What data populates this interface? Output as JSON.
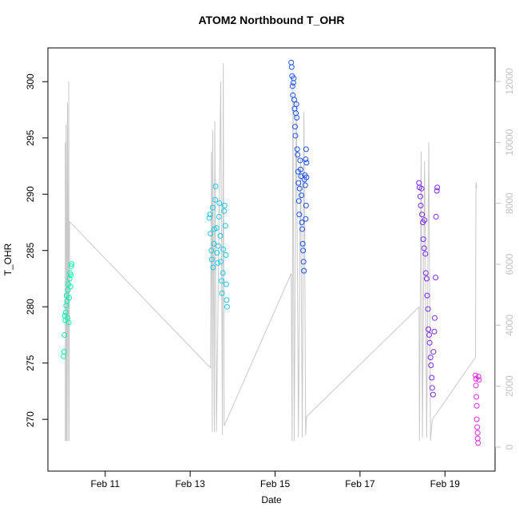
{
  "chart_data": {
    "type": "scatter",
    "title": "ATOM2 Northbound T_OHR",
    "x_label": "Date",
    "y_label": "T_OHR",
    "xlim": [
      9.65,
      20.18
    ],
    "xticks": [
      {
        "value": 11,
        "label": "Feb 11"
      },
      {
        "value": 13,
        "label": "Feb 13"
      },
      {
        "value": 15,
        "label": "Feb 15"
      },
      {
        "value": 17,
        "label": "Feb 17"
      },
      {
        "value": 19,
        "label": "Feb 19"
      }
    ],
    "ylim": [
      265.4,
      303.0
    ],
    "yticks": [
      270,
      275,
      280,
      285,
      290,
      295,
      300
    ],
    "y2lim": [
      -786,
      13100
    ],
    "y2ticks": [
      0,
      2000,
      4000,
      6000,
      8000,
      10000,
      12000
    ],
    "y2_color": "#c0c0c0",
    "series": [
      {
        "type": "line",
        "axis": "y2",
        "color": "#c8c8c8",
        "x": [
          10.06,
          10.06,
          10.07,
          10.08,
          10.09,
          10.11,
          10.12,
          10.14,
          10.15,
          10.16,
          13.48,
          13.5,
          13.52,
          13.53,
          13.57,
          13.58,
          13.62,
          13.72,
          13.76,
          13.78,
          13.8,
          15.38,
          15.4,
          15.42,
          15.45,
          15.5,
          15.55,
          15.6,
          15.64,
          15.68,
          15.72,
          15.74,
          18.39,
          18.4,
          18.44,
          18.47,
          18.52,
          18.57,
          18.62,
          18.66,
          18.7,
          19.72,
          19.73,
          19.75
        ],
        "values": [
          200,
          10000,
          200,
          10600,
          200,
          11300,
          200,
          12000,
          200,
          7400,
          2600,
          9700,
          500,
          10400,
          500,
          10700,
          500,
          12000,
          400,
          12600,
          700,
          5700,
          200,
          12000,
          200,
          11500,
          300,
          9500,
          300,
          11000,
          400,
          1000,
          4600,
          200,
          9700,
          300,
          9400,
          300,
          10000,
          200,
          900,
          2950,
          8700,
          8500
        ]
      },
      {
        "color": "#00f5b0",
        "x": [
          10.02,
          10.03,
          10.04,
          10.05,
          10.06,
          10.07,
          10.08,
          10.09,
          10.1,
          10.11,
          10.12,
          10.13,
          10.14,
          10.15,
          10.16,
          10.17,
          10.18,
          10.19,
          10.2,
          10.21
        ],
        "values": [
          275.6,
          276.0,
          277.5,
          279.2,
          278.8,
          279.5,
          280.1,
          281.0,
          280.5,
          279.0,
          281.5,
          282.0,
          278.6,
          280.8,
          282.5,
          283.0,
          281.8,
          282.8,
          283.6,
          283.8
        ]
      },
      {
        "color": "#1cc8e8",
        "x": [
          13.45,
          13.47,
          13.48,
          13.5,
          13.51,
          13.53,
          13.54,
          13.56,
          13.57,
          13.59,
          13.6,
          13.62,
          13.63,
          13.65,
          13.66,
          13.68,
          13.69,
          13.71,
          13.72,
          13.74,
          13.75,
          13.77,
          13.78,
          13.8,
          13.81,
          13.83,
          13.84,
          13.85,
          13.86,
          13.87
        ],
        "values": [
          287.9,
          288.2,
          286.5,
          285.0,
          284.2,
          288.8,
          283.5,
          285.6,
          286.9,
          289.5,
          290.7,
          287.0,
          284.8,
          283.9,
          285.4,
          288.0,
          289.2,
          286.3,
          284.0,
          282.3,
          281.2,
          283.0,
          285.1,
          288.5,
          289.0,
          287.2,
          284.6,
          282.0,
          280.6,
          280.0
        ]
      },
      {
        "color": "#1a50f0",
        "x": [
          15.38,
          15.39,
          15.4,
          15.41,
          15.42,
          15.43,
          15.44,
          15.45,
          15.46,
          15.47,
          15.48,
          15.49,
          15.5,
          15.51,
          15.52,
          15.53,
          15.54,
          15.55,
          15.56,
          15.57,
          15.58,
          15.59,
          15.6,
          15.61,
          15.62,
          15.63,
          15.64,
          15.65,
          15.66,
          15.67,
          15.68,
          15.69,
          15.7,
          15.71,
          15.72,
          15.73,
          15.74,
          15.74,
          15.73,
          15.72
        ],
        "values": [
          301.7,
          301.3,
          300.5,
          299.6,
          298.8,
          299.9,
          300.3,
          298.4,
          297.6,
          296.0,
          295.2,
          297.2,
          298.0,
          296.8,
          294.0,
          293.5,
          292.0,
          291.0,
          289.4,
          288.2,
          290.5,
          293.0,
          292.2,
          291.6,
          289.9,
          287.5,
          286.9,
          285.6,
          285.0,
          284.0,
          283.2,
          291.3,
          291.7,
          290.8,
          293.1,
          294.0,
          292.8,
          291.5,
          289.0,
          287.8
        ]
      },
      {
        "color": "#7a28f0",
        "x": [
          18.39,
          18.4,
          18.42,
          18.43,
          18.45,
          18.46,
          18.48,
          18.49,
          18.51,
          18.52,
          18.54,
          18.55,
          18.57,
          18.58,
          18.6,
          18.61,
          18.63,
          18.64,
          18.66,
          18.67,
          18.69,
          18.7,
          18.72,
          18.73,
          18.75,
          18.76,
          18.78,
          18.79,
          18.81,
          18.82
        ],
        "values": [
          291.0,
          290.6,
          289.8,
          289.0,
          290.5,
          288.2,
          287.5,
          286.0,
          285.2,
          287.7,
          284.7,
          283.0,
          282.5,
          281.0,
          279.8,
          278.0,
          277.5,
          276.8,
          275.5,
          274.8,
          273.7,
          272.8,
          272.2,
          276.0,
          277.8,
          279.0,
          282.6,
          288.0,
          290.3,
          290.6
        ]
      },
      {
        "color": "#e02ae0",
        "x": [
          19.72,
          19.73,
          19.73,
          19.74,
          19.75,
          19.75,
          19.76,
          19.77,
          19.77,
          19.78,
          19.79,
          19.8
        ],
        "values": [
          273.9,
          273.6,
          273.0,
          272.0,
          271.2,
          270.0,
          269.3,
          268.8,
          268.3,
          267.9,
          273.8,
          273.5
        ]
      }
    ]
  }
}
